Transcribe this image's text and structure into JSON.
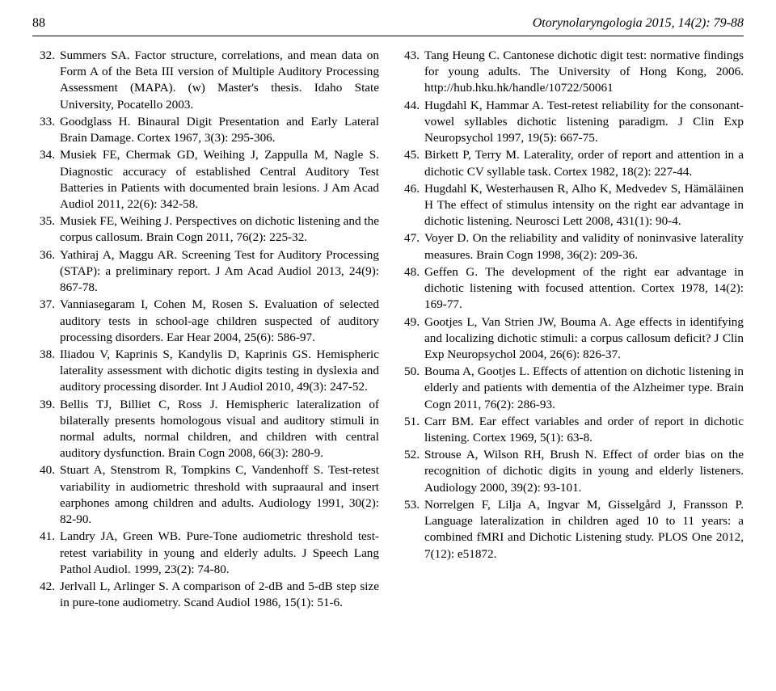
{
  "header": {
    "page_number": "88",
    "journal": "Otorynolaryngologia 2015, 14(2): 79-88"
  },
  "left_refs": [
    {
      "n": "32.",
      "t": "Summers SA. Factor structure, correlations, and mean data on Form A of the Beta III version of Multiple Auditory Processing Assessment (MAPA). (w) Master's thesis. Idaho State University, Pocatello 2003."
    },
    {
      "n": "33.",
      "t": "Goodglass H. Binaural Digit Presentation and Early Lateral Brain Damage. Cortex 1967, 3(3): 295-306."
    },
    {
      "n": "34.",
      "t": "Musiek FE, Chermak GD, Weihing J, Zappulla M, Nagle S. Diagnostic accuracy of established Central Auditory Test Batteries in Patients with documented brain lesions. J Am Acad Audiol 2011, 22(6): 342-58."
    },
    {
      "n": "35.",
      "t": "Musiek FE, Weihing J. Perspectives on dichotic listening and the corpus callosum. Brain Cogn 2011, 76(2): 225-32."
    },
    {
      "n": "36.",
      "t": "Yathiraj A, Maggu AR. Screening Test for Auditory Processing (STAP): a preliminary report. J Am Acad Audiol 2013, 24(9): 867-78."
    },
    {
      "n": "37.",
      "t": "Vanniasegaram I, Cohen M, Rosen S. Evaluation of selected auditory tests in school-age children suspected of auditory processing disorders. Ear Hear 2004, 25(6): 586-97."
    },
    {
      "n": "38.",
      "t": "Iliadou V, Kaprinis S, Kandylis D, Kaprinis GS. Hemispheric laterality assessment with dichotic digits testing in dyslexia and auditory processing disorder. Int J Audiol 2010, 49(3): 247-52."
    },
    {
      "n": "39.",
      "t": "Bellis TJ, Billiet C, Ross J. Hemispheric lateralization of bilaterally presents homologous visual and auditory stimuli in normal adults, normal children, and children with central auditory dysfunction. Brain Cogn 2008, 66(3): 280-9."
    },
    {
      "n": "40.",
      "t": "Stuart A, Stenstrom R, Tompkins C, Vandenhoff S. Test-retest variability in audiometric threshold with supraaural and insert earphones among children and adults. Audiology 1991, 30(2): 82-90."
    },
    {
      "n": "41.",
      "t": "Landry JA, Green WB. Pure-Tone audiometric threshold test-retest variability in young and elderly adults. J Speech Lang Pathol Audiol. 1999, 23(2): 74-80."
    },
    {
      "n": "42.",
      "t": "Jerlvall L, Arlinger S. A comparison of 2-dB and 5-dB step size in pure-tone audiometry. Scand Audiol 1986, 15(1): 51-6."
    }
  ],
  "right_refs": [
    {
      "n": "43.",
      "t": "Tang Heung C. Cantonese dichotic digit test: normative findings for young adults. The University of Hong Kong, 2006. http://hub.hku.hk/handle/10722/50061"
    },
    {
      "n": "44.",
      "t": "Hugdahl K, Hammar A. Test-retest reliability for the consonant-vowel syllables dichotic listening paradigm. J Clin Exp Neuropsychol 1997, 19(5): 667-75."
    },
    {
      "n": "45.",
      "t": "Birkett P, Terry M. Laterality, order of report and attention in a dichotic CV syllable task. Cortex 1982, 18(2): 227-44."
    },
    {
      "n": "46.",
      "t": "Hugdahl K, Westerhausen R, Alho K, Medvedev S, Hämäläinen H The effect of stimulus intensity on the right ear advantage in dichotic listening. Neurosci Lett 2008, 431(1): 90-4."
    },
    {
      "n": "47.",
      "t": "Voyer D. On the reliability and validity of noninvasive laterality measures. Brain Cogn 1998, 36(2): 209-36."
    },
    {
      "n": "48.",
      "t": "Geffen G. The development of the right ear advantage in dichotic listening with focused attention. Cortex 1978, 14(2): 169-77."
    },
    {
      "n": "49.",
      "t": "Gootjes L, Van Strien JW, Bouma A. Age effects in identifying and localizing dichotic stimuli: a corpus callosum deficit? J Clin Exp Neuropsychol 2004, 26(6): 826-37."
    },
    {
      "n": "50.",
      "t": "Bouma A, Gootjes L. Effects of attention on dichotic listening in elderly and patients with dementia of the Alzheimer type. Brain Cogn 2011, 76(2): 286-93."
    },
    {
      "n": "51.",
      "t": "Carr BM. Ear effect variables and order of report in dichotic listening. Cortex 1969, 5(1): 63-8."
    },
    {
      "n": "52.",
      "t": "Strouse A, Wilson RH, Brush N. Effect of order bias on the recognition of dichotic digits in young and elderly listeners. Audiology 2000, 39(2): 93-101."
    },
    {
      "n": "53.",
      "t": "Norrelgen F, Lilja A, Ingvar M, Gisselgård J, Fransson P. Language lateralization in children aged 10 to 11 years: a combined fMRI and Dichotic Listening study. PLOS One 2012, 7(12): e51872."
    }
  ]
}
